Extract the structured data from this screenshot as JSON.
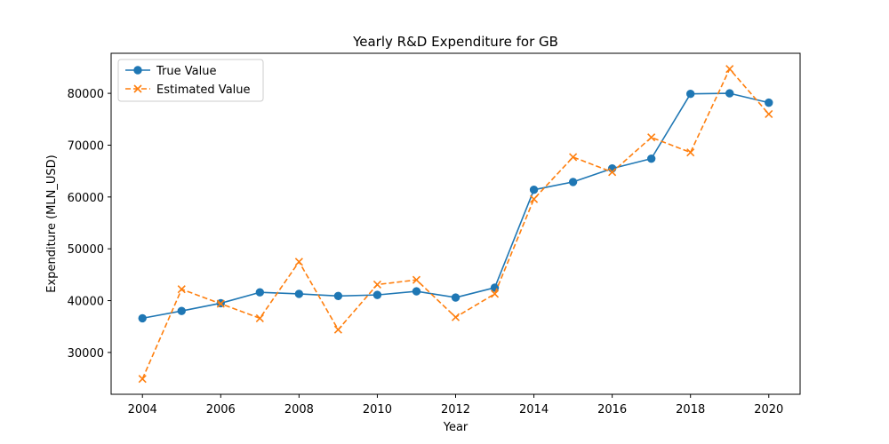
{
  "chart_data": {
    "type": "line",
    "title": "Yearly R&D Expenditure for GB",
    "xlabel": "Year",
    "ylabel": "Expenditure (MLN_USD)",
    "x": [
      2004,
      2005,
      2006,
      2007,
      2008,
      2009,
      2010,
      2011,
      2012,
      2013,
      2014,
      2015,
      2016,
      2017,
      2018,
      2019,
      2020
    ],
    "xlim": [
      2003.2,
      2020.8
    ],
    "ylim": [
      21930,
      87730
    ],
    "xticks": [
      "2004",
      "2006",
      "2008",
      "2010",
      "2012",
      "2014",
      "2016",
      "2018",
      "2020"
    ],
    "yticks": [
      "30000",
      "40000",
      "50000",
      "60000",
      "70000",
      "80000"
    ],
    "grid": false,
    "legend_position": "top-left",
    "series": [
      {
        "name": "True Value",
        "color": "#1f77b4",
        "marker": "circle",
        "linestyle": "solid",
        "values": [
          36600,
          38000,
          39500,
          41600,
          41300,
          40900,
          41100,
          41800,
          40600,
          42500,
          61400,
          62900,
          65500,
          67400,
          79900,
          80000,
          78200
        ]
      },
      {
        "name": "Estimated Value",
        "color": "#ff7f0e",
        "marker": "x",
        "linestyle": "dashed",
        "values": [
          24900,
          42200,
          39400,
          36600,
          47500,
          34400,
          43100,
          44000,
          36800,
          41300,
          59600,
          67700,
          64800,
          71500,
          68600,
          84700,
          76000
        ]
      }
    ]
  }
}
